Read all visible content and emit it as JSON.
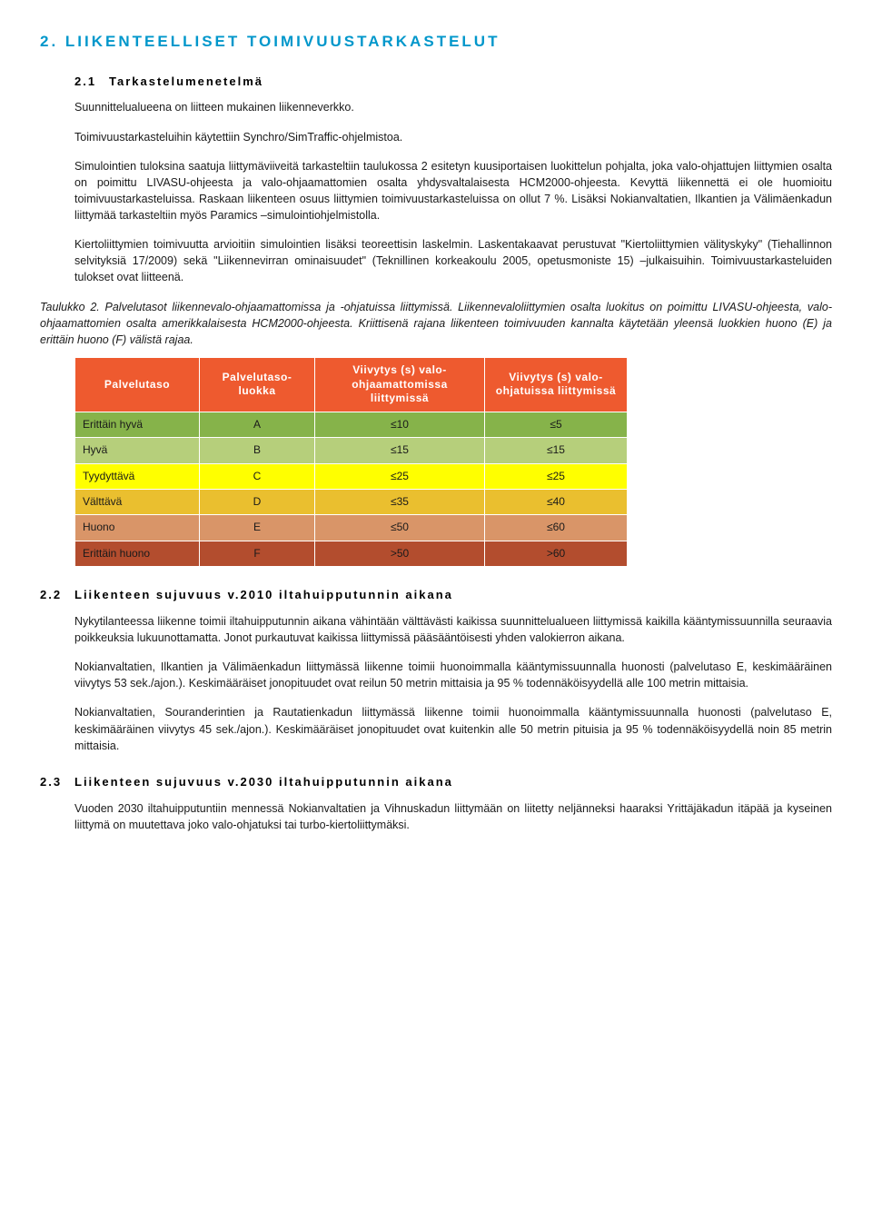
{
  "section": {
    "number": "2.",
    "title": "LIIKENTEELLISET TOIMIVUUSTARKASTELUT"
  },
  "sub21": {
    "num": "2.1",
    "title": "Tarkastelumenetelmä",
    "p1": "Suunnittelualueena on liitteen mukainen liikenneverkko.",
    "p2": "Toimivuustarkasteluihin käytettiin Synchro/SimTraffic-ohjelmistoa.",
    "p3": "Simulointien tuloksina saatuja liittymäviiveitä tarkasteltiin taulukossa 2 esitetyn kuusiportaisen luokittelun pohjalta, joka valo-ohjattujen liittymien osalta on poimittu LIVASU-ohjeesta ja valo-ohjaamattomien osalta yhdysvaltalaisesta HCM2000-ohjeesta. Kevyttä liikennettä ei ole huomioitu toimivuustarkasteluissa. Raskaan liikenteen osuus liittymien toimivuustarkasteluissa on ollut 7 %. Lisäksi Nokianvaltatien, Ilkantien ja Välimäenkadun liittymää tarkasteltiin myös Paramics –simulointiohjelmistolla.",
    "p4": "Kiertoliittymien toimivuutta arvioitiin simulointien lisäksi teoreettisin laskelmin. Laskentakaavat perustuvat \"Kiertoliittymien välityskyky\" (Tiehallinnon selvityksiä 17/2009) sekä \"Liikennevirran ominaisuudet\" (Teknillinen korkeakoulu 2005, opetusmoniste 15) –julkaisuihin. Toimivuustarkasteluiden tulokset ovat liitteenä.",
    "caption": "Taulukko 2. Palvelutasot liikennevalo-ohjaamattomissa ja -ohjatuissa liittymissä. Liikennevaloliittymien osalta luokitus on poimittu LIVASU-ohjeesta, valo-ohjaamattomien osalta amerikkalaisesta HCM2000-ohjeesta. Kriittisenä rajana liikenteen toimivuuden kannalta käytetään yleensä luokkien huono (E) ja erittäin huono (F) välistä rajaa."
  },
  "table": {
    "header_bg": "#ee5a2f",
    "header_color": "#ffffff",
    "col_widths": [
      "120px",
      "110px",
      "170px",
      "140px"
    ],
    "headers": [
      "Palvelutaso",
      "Palvelutaso-luokka",
      "Viivytys (s) valo-ohjaamattomissa liittymissä",
      "Viivytys (s) valo-ohjatuissa liittymissä"
    ],
    "rows": [
      {
        "cells": [
          "Erittäin hyvä",
          "A",
          "≤10",
          "≤5"
        ],
        "bg": "#86b34a"
      },
      {
        "cells": [
          "Hyvä",
          "B",
          "≤15",
          "≤15"
        ],
        "bg": "#b6cf7b"
      },
      {
        "cells": [
          "Tyydyttävä",
          "C",
          "≤25",
          "≤25"
        ],
        "bg": "#ffff00"
      },
      {
        "cells": [
          "Välttävä",
          "D",
          "≤35",
          "≤40"
        ],
        "bg": "#eabf2f"
      },
      {
        "cells": [
          "Huono",
          "E",
          "≤50",
          "≤60"
        ],
        "bg": "#d99568"
      },
      {
        "cells": [
          "Erittäin huono",
          "F",
          ">50",
          ">60"
        ],
        "bg": "#b34d2e"
      }
    ]
  },
  "sub22": {
    "num": "2.2",
    "title": "Liikenteen sujuvuus v.2010 iltahuipputunnin aikana",
    "p1": "Nykytilanteessa liikenne toimii iltahuipputunnin aikana vähintään välttävästi kaikissa suunnittelualueen liittymissä kaikilla kääntymissuunnilla seuraavia poikkeuksia lukuunottamatta. Jonot purkautuvat kaikissa liittymissä pääsääntöisesti yhden valokierron aikana.",
    "p2": "Nokianvaltatien, Ilkantien ja Välimäenkadun liittymässä liikenne toimii huonoimmalla kääntymissuunnalla huonosti (palvelutaso E, keskimääräinen viivytys 53 sek./ajon.). Keskimääräiset jonopituudet ovat reilun 50 metrin mittaisia ja 95 % todennäköisyydellä alle 100 metrin mittaisia.",
    "p3": "Nokianvaltatien, Souranderintien ja Rautatienkadun liittymässä liikenne toimii huonoimmalla kääntymissuunnalla huonosti (palvelutaso E, keskimääräinen viivytys 45 sek./ajon.). Keskimääräiset jonopituudet ovat kuitenkin alle 50 metrin pituisia ja 95 % todennäköisyydellä noin 85 metrin mittaisia."
  },
  "sub23": {
    "num": "2.3",
    "title": "Liikenteen sujuvuus v.2030 iltahuipputunnin aikana",
    "p1": "Vuoden 2030 iltahuipputuntiin mennessä Nokianvaltatien ja Vihnuskadun liittymään on liitetty neljänneksi haaraksi Yrittäjäkadun itäpää ja kyseinen liittymä on muutettava joko valo-ohjatuksi tai turbo-kiertoliittymäksi."
  }
}
